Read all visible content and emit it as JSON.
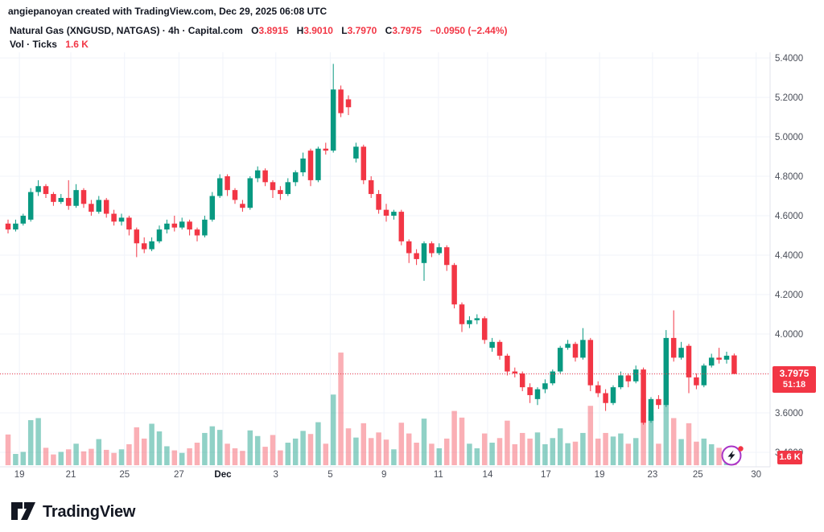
{
  "header": {
    "attribution": "angiepanoyan created with TradingView.com, Dec 29, 2025 06:08 UTC"
  },
  "legend": {
    "title": "Natural Gas (XNGUSD, NATGAS) · 4h · Capital.com",
    "ohlc": [
      {
        "label": "O",
        "value": "3.8915"
      },
      {
        "label": "H",
        "value": "3.9010"
      },
      {
        "label": "L",
        "value": "3.7970"
      },
      {
        "label": "C",
        "value": "3.7975"
      }
    ],
    "change": "−0.0950 (−2.44%)",
    "volume_label": "Vol · Ticks",
    "volume_value": "1.6 K"
  },
  "price_scale": {
    "last_price": "3.7975",
    "countdown": "51:18",
    "volume_tag": "1.6 K"
  },
  "footer": {
    "brand": "TradingView"
  },
  "colors": {
    "up": "#089981",
    "down": "#f23645",
    "volume_up": "rgba(8,153,129,0.45)",
    "volume_down": "rgba(242,54,69,0.40)",
    "grid": "#f0f3fa",
    "axis_border": "#e0e3eb",
    "axis_text": "#4a4e59",
    "dark_text": "#131722",
    "accent_red": "#f23645",
    "purple": "#a934c7"
  },
  "chart_data": {
    "type": "candlestick",
    "title": "Natural Gas (XNGUSD, NATGAS)",
    "interval": "4h",
    "exchange": "Capital.com",
    "volume_indicator": "Vol · Ticks",
    "volume_unit": "K",
    "ylim": [
      3.35,
      5.45
    ],
    "y_ticks": [
      5.4,
      5.2,
      5.0,
      4.8,
      4.6,
      4.4,
      4.2,
      4.0,
      3.8,
      3.6,
      3.4
    ],
    "x_ticks": [
      {
        "label": "19",
        "i": 1.5,
        "bold": false
      },
      {
        "label": "21",
        "i": 8.3,
        "bold": false
      },
      {
        "label": "25",
        "i": 15.4,
        "bold": false
      },
      {
        "label": "27",
        "i": 22.6,
        "bold": false
      },
      {
        "label": "Dec",
        "i": 28.4,
        "bold": true
      },
      {
        "label": "3",
        "i": 35.4,
        "bold": false
      },
      {
        "label": "5",
        "i": 42.6,
        "bold": false
      },
      {
        "label": "9",
        "i": 49.7,
        "bold": false
      },
      {
        "label": "11",
        "i": 56.9,
        "bold": false
      },
      {
        "label": "14",
        "i": 63.4,
        "bold": false
      },
      {
        "label": "17",
        "i": 71.1,
        "bold": false
      },
      {
        "label": "19",
        "i": 78.2,
        "bold": false
      },
      {
        "label": "23",
        "i": 85.2,
        "bold": false
      },
      {
        "label": "25",
        "i": 91.2,
        "bold": false
      },
      {
        "label": "30",
        "i": 98.9,
        "bold": false
      }
    ],
    "last_close": 3.7975,
    "last_volume_k": 1.6,
    "candles": [
      [
        4.56,
        4.58,
        4.51,
        4.53,
        6.0
      ],
      [
        4.53,
        4.58,
        4.52,
        4.56,
        2.2
      ],
      [
        4.56,
        4.61,
        4.55,
        4.6,
        2.6
      ],
      [
        4.58,
        4.74,
        4.57,
        4.72,
        8.8
      ],
      [
        4.72,
        4.78,
        4.7,
        4.75,
        9.2
      ],
      [
        4.75,
        4.76,
        4.69,
        4.71,
        3.4
      ],
      [
        4.71,
        4.72,
        4.65,
        4.67,
        2.1
      ],
      [
        4.67,
        4.71,
        4.66,
        4.69,
        2.6
      ],
      [
        4.69,
        4.78,
        4.63,
        4.65,
        3.1
      ],
      [
        4.65,
        4.76,
        4.64,
        4.73,
        4.2
      ],
      [
        4.73,
        4.74,
        4.64,
        4.66,
        2.7
      ],
      [
        4.66,
        4.68,
        4.6,
        4.62,
        3.2
      ],
      [
        4.62,
        4.7,
        4.61,
        4.68,
        5.1
      ],
      [
        4.68,
        4.69,
        4.59,
        4.61,
        3.0
      ],
      [
        4.61,
        4.63,
        4.55,
        4.57,
        2.4
      ],
      [
        4.57,
        4.61,
        4.55,
        4.59,
        3.1
      ],
      [
        4.59,
        4.6,
        4.5,
        4.53,
        4.1
      ],
      [
        4.53,
        4.54,
        4.39,
        4.46,
        7.4
      ],
      [
        4.46,
        4.49,
        4.41,
        4.43,
        5.2
      ],
      [
        4.43,
        4.49,
        4.42,
        4.47,
        8.1
      ],
      [
        4.47,
        4.55,
        4.46,
        4.53,
        6.6
      ],
      [
        4.53,
        4.58,
        4.51,
        4.56,
        3.7
      ],
      [
        4.56,
        4.6,
        4.52,
        4.54,
        2.9
      ],
      [
        4.54,
        4.59,
        4.53,
        4.57,
        2.4
      ],
      [
        4.57,
        4.58,
        4.5,
        4.53,
        3.3
      ],
      [
        4.53,
        4.54,
        4.47,
        4.5,
        4.4
      ],
      [
        4.5,
        4.6,
        4.49,
        4.58,
        6.3
      ],
      [
        4.58,
        4.72,
        4.57,
        4.7,
        7.6
      ],
      [
        4.7,
        4.81,
        4.69,
        4.79,
        6.9
      ],
      [
        4.8,
        4.81,
        4.7,
        4.73,
        4.2
      ],
      [
        4.73,
        4.74,
        4.66,
        4.68,
        3.3
      ],
      [
        4.66,
        4.68,
        4.62,
        4.64,
        2.8
      ],
      [
        4.64,
        4.8,
        4.63,
        4.79,
        6.8
      ],
      [
        4.79,
        4.85,
        4.77,
        4.83,
        5.7
      ],
      [
        4.83,
        4.84,
        4.75,
        4.77,
        3.6
      ],
      [
        4.77,
        4.78,
        4.69,
        4.73,
        5.9
      ],
      [
        4.73,
        4.75,
        4.68,
        4.71,
        2.9
      ],
      [
        4.71,
        4.79,
        4.7,
        4.77,
        4.4
      ],
      [
        4.77,
        4.83,
        4.75,
        4.82,
        5.2
      ],
      [
        4.82,
        4.92,
        4.8,
        4.89,
        6.7
      ],
      [
        4.93,
        4.94,
        4.75,
        4.78,
        6.1
      ],
      [
        4.78,
        4.95,
        4.77,
        4.94,
        8.4
      ],
      [
        4.94,
        4.97,
        4.91,
        4.93,
        4.2
      ],
      [
        4.93,
        5.37,
        4.92,
        5.24,
        13.8
      ],
      [
        5.24,
        5.26,
        5.1,
        5.12,
        22.0
      ],
      [
        5.19,
        5.21,
        5.11,
        5.15,
        7.2
      ],
      [
        4.89,
        4.97,
        4.87,
        4.95,
        5.4
      ],
      [
        4.95,
        4.96,
        4.76,
        4.78,
        8.2
      ],
      [
        4.78,
        4.8,
        4.69,
        4.71,
        5.3
      ],
      [
        4.71,
        4.73,
        4.61,
        4.63,
        6.4
      ],
      [
        4.63,
        4.66,
        4.57,
        4.6,
        5.0
      ],
      [
        4.6,
        4.63,
        4.58,
        4.62,
        3.1
      ],
      [
        4.62,
        4.63,
        4.45,
        4.47,
        8.3
      ],
      [
        4.47,
        4.48,
        4.36,
        4.41,
        6.2
      ],
      [
        4.41,
        4.43,
        4.35,
        4.38,
        4.4
      ],
      [
        4.36,
        4.47,
        4.27,
        4.46,
        9.1
      ],
      [
        4.46,
        4.47,
        4.39,
        4.41,
        4.2
      ],
      [
        4.41,
        4.46,
        4.4,
        4.44,
        3.3
      ],
      [
        4.44,
        4.45,
        4.32,
        4.35,
        5.2
      ],
      [
        4.35,
        4.36,
        4.13,
        4.15,
        10.6
      ],
      [
        4.15,
        4.16,
        4.01,
        4.05,
        9.3
      ],
      [
        4.05,
        4.09,
        4.03,
        4.07,
        4.2
      ],
      [
        4.07,
        4.1,
        4.05,
        4.08,
        3.3
      ],
      [
        4.08,
        4.09,
        3.95,
        3.97,
        6.2
      ],
      [
        3.93,
        3.98,
        3.91,
        3.96,
        4.4
      ],
      [
        3.96,
        3.97,
        3.87,
        3.89,
        5.3
      ],
      [
        3.89,
        3.9,
        3.79,
        3.81,
        8.7
      ],
      [
        3.81,
        3.83,
        3.78,
        3.8,
        4.1
      ],
      [
        3.8,
        3.81,
        3.71,
        3.73,
        6.3
      ],
      [
        3.73,
        3.75,
        3.65,
        3.69,
        5.2
      ],
      [
        3.67,
        3.73,
        3.64,
        3.72,
        6.4
      ],
      [
        3.72,
        3.77,
        3.7,
        3.75,
        4.1
      ],
      [
        3.75,
        3.82,
        3.74,
        3.81,
        5.3
      ],
      [
        3.81,
        3.94,
        3.8,
        3.93,
        7.2
      ],
      [
        3.93,
        3.97,
        3.92,
        3.95,
        4.3
      ],
      [
        3.95,
        3.96,
        3.86,
        3.88,
        4.6
      ],
      [
        3.88,
        4.03,
        3.87,
        3.97,
        6.3
      ],
      [
        3.97,
        3.98,
        3.71,
        3.74,
        11.6
      ],
      [
        3.74,
        3.76,
        3.68,
        3.7,
        5.2
      ],
      [
        3.7,
        3.72,
        3.61,
        3.65,
        6.3
      ],
      [
        3.65,
        3.74,
        3.64,
        3.73,
        5.6
      ],
      [
        3.73,
        3.81,
        3.72,
        3.79,
        6.2
      ],
      [
        3.79,
        3.8,
        3.73,
        3.76,
        4.2
      ],
      [
        3.76,
        3.84,
        3.75,
        3.82,
        5.3
      ],
      [
        3.82,
        3.83,
        3.54,
        3.55,
        13.1
      ],
      [
        3.56,
        3.68,
        3.55,
        3.67,
        9.7
      ],
      [
        3.67,
        3.69,
        3.62,
        3.64,
        4.2
      ],
      [
        3.64,
        4.02,
        3.63,
        3.98,
        12.2
      ],
      [
        3.98,
        4.12,
        3.86,
        3.88,
        9.2
      ],
      [
        3.88,
        3.96,
        3.87,
        3.93,
        5.1
      ],
      [
        3.94,
        3.95,
        3.7,
        3.78,
        8.2
      ],
      [
        3.78,
        3.8,
        3.72,
        3.74,
        4.6
      ],
      [
        3.74,
        3.85,
        3.73,
        3.84,
        5.2
      ],
      [
        3.84,
        3.9,
        3.83,
        3.88,
        4.1
      ],
      [
        3.88,
        3.93,
        3.85,
        3.87,
        3.4
      ],
      [
        3.87,
        3.91,
        3.85,
        3.89,
        2.8
      ],
      [
        3.8915,
        3.901,
        3.797,
        3.7975,
        1.6
      ]
    ]
  }
}
